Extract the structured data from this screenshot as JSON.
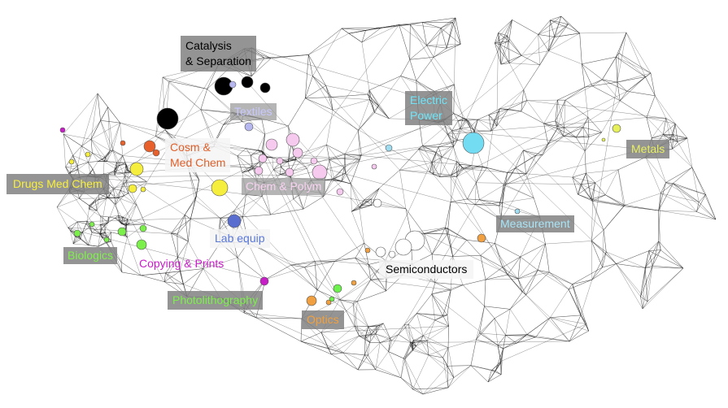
{
  "clusters": [
    {
      "id": "catalysis",
      "lines": [
        "Catalysis",
        "& Separation"
      ],
      "color": "#000000"
    },
    {
      "id": "textiles",
      "lines": [
        "Textiles"
      ],
      "color": "#b7b7f0"
    },
    {
      "id": "electric",
      "lines": [
        "Electric",
        "Power"
      ],
      "color": "#73dcf2"
    },
    {
      "id": "cosm",
      "lines": [
        "Cosm &",
        "Med Chem"
      ],
      "color": "#e8602c"
    },
    {
      "id": "metals",
      "lines": [
        "Metals"
      ],
      "color": "#e6f05a"
    },
    {
      "id": "drugs",
      "lines": [
        "Drugs Med Chem"
      ],
      "color": "#f5ee3c"
    },
    {
      "id": "chem",
      "lines": [
        "Chem & Polym"
      ],
      "color": "#f6c9ee"
    },
    {
      "id": "measurement",
      "lines": [
        "Measurement"
      ],
      "color": "#9fdcf0"
    },
    {
      "id": "labequip",
      "lines": [
        "Lab equip"
      ],
      "color": "#5a6ecf"
    },
    {
      "id": "biologics",
      "lines": [
        "Biologics"
      ],
      "color": "#7cf04a"
    },
    {
      "id": "copying",
      "lines": [
        "Copying  & Prints"
      ],
      "color": "#c81ec8"
    },
    {
      "id": "semiconductors",
      "lines": [
        "Semiconductors"
      ],
      "color": "#ffffff"
    },
    {
      "id": "photolithography",
      "lines": [
        "Photolithography"
      ],
      "color": "#6cf04c"
    },
    {
      "id": "optics",
      "lines": [
        "Optics"
      ],
      "color": "#f0a040"
    }
  ],
  "edge_color": "#1a1a1a",
  "node_stroke": "#555555"
}
